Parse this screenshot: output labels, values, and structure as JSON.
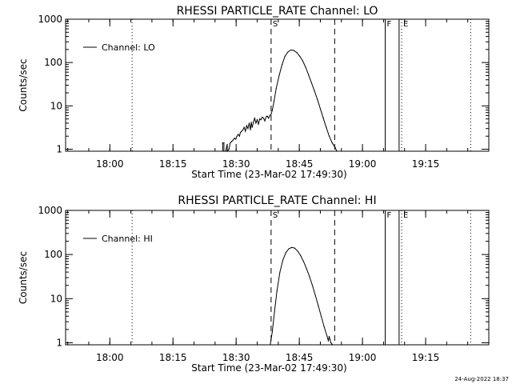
{
  "chart_data": [
    {
      "type": "line",
      "title": "RHESSI PARTICLE_RATE Channel: LO",
      "xlabel": "Start Time (23-Mar-02 17:49:30)",
      "ylabel": "Counts/sec",
      "x_unit": "minutes after 17:49:30",
      "xlim": [
        0,
        100.5
      ],
      "ylim": [
        0.9,
        1000
      ],
      "y_scale": "log",
      "grid": false,
      "legend": "top-left",
      "x_ticks": [
        {
          "label": "18:00",
          "value": 10.5
        },
        {
          "label": "18:15",
          "value": 25.5
        },
        {
          "label": "18:30",
          "value": 40.5
        },
        {
          "label": "18:45",
          "value": 55.5
        },
        {
          "label": "19:00",
          "value": 70.5
        },
        {
          "label": "19:15",
          "value": 85.5
        }
      ],
      "y_ticks": [
        {
          "label": "1",
          "value": 1
        },
        {
          "label": "10",
          "value": 10
        },
        {
          "label": "100",
          "value": 100
        },
        {
          "label": "1000",
          "value": 1000
        }
      ],
      "markers": [
        {
          "label": "",
          "x": 15.8,
          "style": "dotted"
        },
        {
          "label": "S",
          "x": 48.8,
          "style": "dashed"
        },
        {
          "label": "",
          "x": 63.9,
          "style": "dashed"
        },
        {
          "label": "F",
          "x": 75.9,
          "style": "solid"
        },
        {
          "label": "",
          "x": 79.2,
          "style": "solid"
        },
        {
          "label": "E",
          "x": 79.8,
          "style": "dotted"
        },
        {
          "label": "",
          "x": 96.2,
          "style": "dotted"
        }
      ],
      "series": [
        {
          "name": "Channel: LO",
          "x": [
            37.3,
            37.3,
            37.6,
            37.6,
            38.0,
            38.4,
            38.4,
            38.8,
            39.1,
            39.4,
            39.7,
            40.1,
            40.4,
            40.7,
            41.0,
            41.3,
            41.5,
            41.8,
            42.1,
            42.4,
            42.7,
            43.0,
            43.3,
            43.6,
            43.9,
            44.1,
            44.3,
            44.6,
            44.9,
            45.2,
            45.5,
            45.8,
            46.1,
            46.4,
            46.7,
            47.0,
            47.3,
            47.6,
            47.9,
            48.2,
            48.5,
            48.8,
            49.1,
            49.5,
            50.0,
            50.7,
            51.4,
            52.1,
            52.8,
            53.5,
            54.2,
            54.9,
            55.6,
            56.3,
            57.0,
            57.7,
            58.4,
            59.1,
            59.8,
            60.5,
            61.2,
            61.9,
            62.6,
            63.3,
            64.0,
            64.4
          ],
          "values": [
            0.9,
            1.4,
            1.4,
            0.9,
            0.9,
            1.3,
            0.9,
            1.0,
            1.4,
            1.5,
            1.6,
            1.8,
            1.7,
            2.0,
            2.2,
            2.0,
            2.4,
            2.6,
            2.8,
            3.2,
            2.6,
            3.5,
            3.0,
            4.0,
            2.8,
            4.2,
            3.2,
            4.2,
            5.2,
            4.0,
            4.8,
            3.8,
            5.0,
            4.8,
            5.5,
            5.2,
            4.5,
            5.6,
            5.8,
            5.2,
            6.0,
            6.4,
            8.0,
            13.0,
            25.0,
            50.0,
            90.0,
            140.0,
            175.0,
            195.0,
            190.0,
            170.0,
            140.0,
            110.0,
            78.0,
            52.0,
            34.0,
            22.0,
            14.0,
            8.5,
            5.2,
            3.2,
            2.0,
            1.4,
            1.1,
            0.9
          ]
        }
      ]
    },
    {
      "type": "line",
      "title": "RHESSI PARTICLE_RATE Channel: HI",
      "xlabel": "Start Time (23-Mar-02 17:49:30)",
      "ylabel": "Counts/sec",
      "x_unit": "minutes after 17:49:30",
      "xlim": [
        0,
        100.5
      ],
      "ylim": [
        0.9,
        1000
      ],
      "y_scale": "log",
      "grid": false,
      "legend": "top-left",
      "x_ticks": [
        {
          "label": "18:00",
          "value": 10.5
        },
        {
          "label": "18:15",
          "value": 25.5
        },
        {
          "label": "18:30",
          "value": 40.5
        },
        {
          "label": "18:45",
          "value": 55.5
        },
        {
          "label": "19:00",
          "value": 70.5
        },
        {
          "label": "19:15",
          "value": 85.5
        }
      ],
      "y_ticks": [
        {
          "label": "1",
          "value": 1
        },
        {
          "label": "10",
          "value": 10
        },
        {
          "label": "100",
          "value": 100
        },
        {
          "label": "1000",
          "value": 1000
        }
      ],
      "markers": [
        {
          "label": "",
          "x": 15.8,
          "style": "dotted"
        },
        {
          "label": "S",
          "x": 48.8,
          "style": "dashed"
        },
        {
          "label": "",
          "x": 63.9,
          "style": "dashed"
        },
        {
          "label": "F",
          "x": 75.9,
          "style": "solid"
        },
        {
          "label": "",
          "x": 79.2,
          "style": "solid"
        },
        {
          "label": "E",
          "x": 79.8,
          "style": "dotted"
        },
        {
          "label": "",
          "x": 96.2,
          "style": "dotted"
        }
      ],
      "series": [
        {
          "name": "Channel: HI",
          "x": [
            48.6,
            49.1,
            49.6,
            50.2,
            50.9,
            51.6,
            52.3,
            53.0,
            53.7,
            54.4,
            55.1,
            55.8,
            56.5,
            57.2,
            57.9,
            58.6,
            59.3,
            60.0,
            60.7,
            61.4,
            62.1,
            62.4,
            62.6,
            63.0,
            63.4
          ],
          "values": [
            0.9,
            1.8,
            5.0,
            15.0,
            40.0,
            75.0,
            110.0,
            135.0,
            145.0,
            140.0,
            120.0,
            95.0,
            70.0,
            48.0,
            32.0,
            20.0,
            12.0,
            7.0,
            4.0,
            2.3,
            1.4,
            1.1,
            1.4,
            1.0,
            0.9
          ]
        }
      ]
    }
  ],
  "footer": {
    "generated": "24-Aug-2022 18:37"
  }
}
